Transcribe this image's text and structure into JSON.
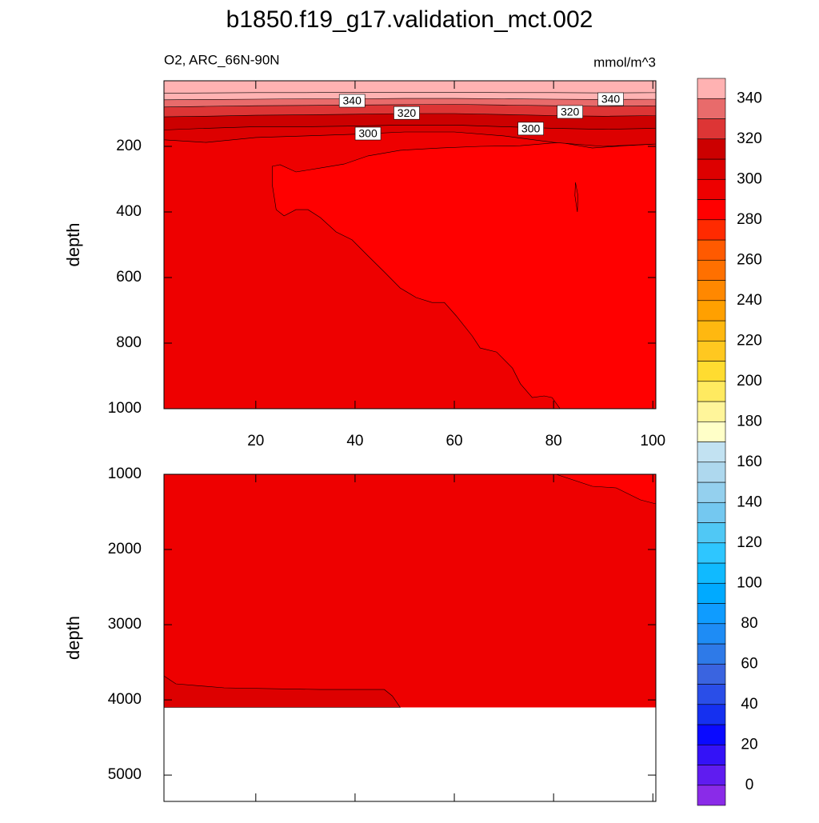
{
  "chart_data": {
    "type": "contour",
    "title": "b1850.f19_g17.validation_mct.002",
    "subtitle": "O2, ARC_66N-90N",
    "units": "mmol/m^3",
    "xlim": [
      1.5,
      100.6
    ],
    "xticks": [
      20,
      40,
      60,
      80,
      100
    ],
    "y_reversed": true,
    "panels": [
      {
        "ylabel": "depth",
        "ylim": [
          0,
          1000
        ],
        "yticks": [
          200,
          400,
          600,
          800,
          1000
        ],
        "xtick_labels": true,
        "regions": [
          {
            "level": 290,
            "x": [
              1.5,
              100.6,
              100.6,
              1.5
            ],
            "depth": [
              0,
              0,
              1000,
              1000
            ]
          },
          {
            "level": 280,
            "x": [
              23.3,
              24.9,
              28.1,
              33.0,
              37.8,
              42.6,
              49.1,
              57.1,
              65.2,
              73.3,
              81.3,
              87.8,
              94.2,
              100.6,
              100.6,
              81.3,
              79.7,
              78.1,
              75.7,
              73.3,
              71.7,
              68.5,
              65.2,
              63.6,
              60.4,
              58.0,
              55.5,
              52.3,
              49.1,
              45.9,
              42.6,
              39.4,
              36.2,
              33.0,
              30.5,
              28.1,
              25.7,
              24.1,
              23.3
            ],
            "depth": [
              261,
              256,
              278,
              266,
              254,
              229,
              212,
              205,
              200,
              198,
              188,
              205,
              198,
              193,
              1000,
              1000,
              966,
              961,
              966,
              924,
              876,
              827,
              815,
              778,
              717,
              676,
              676,
              661,
              632,
              583,
              534,
              485,
              461,
              417,
              393,
              393,
              412,
              393,
              315
            ]
          },
          {
            "level": 280,
            "x": [
              84.4,
              84.9,
              84.8,
              84.3
            ],
            "depth": [
              310,
              350,
              400,
              350
            ]
          },
          {
            "level": 300,
            "x": [
              1.5,
              10,
              20,
              30,
              40,
              50,
              60,
              70,
              80,
              90,
              100.6,
              100.6,
              1.5
            ],
            "depth": [
              180,
              188,
              173,
              168,
              163,
              156,
              156,
              168,
              188,
              200,
              193,
              0,
              0
            ]
          },
          {
            "level": 310,
            "x": [
              1.5,
              10,
              20,
              30,
              40,
              50,
              60,
              70,
              80,
              90,
              100.6,
              100.6,
              1.5
            ],
            "depth": [
              150,
              145,
              140,
              140,
              138,
              135,
              135,
              140,
              145,
              148,
              145,
              0,
              0
            ]
          },
          {
            "level": 320,
            "x": [
              1.5,
              10,
              20,
              30,
              40,
              50,
              60,
              70,
              80,
              90,
              100.6,
              100.6,
              1.5
            ],
            "depth": [
              110,
              108,
              105,
              104,
              102,
              100,
              100,
              103,
              106,
              108,
              106,
              0,
              0
            ]
          },
          {
            "level": 330,
            "x": [
              1.5,
              10,
              20,
              30,
              40,
              50,
              60,
              70,
              80,
              90,
              100.6,
              100.6,
              1.5
            ],
            "depth": [
              80,
              78,
              76,
              75,
              74,
              73,
              72,
              74,
              76,
              78,
              76,
              0,
              0
            ]
          },
          {
            "level": 340,
            "x": [
              1.5,
              10,
              20,
              30,
              40,
              50,
              60,
              70,
              80,
              90,
              100.6,
              100.6,
              1.5
            ],
            "depth": [
              58,
              57,
              56,
              55,
              55,
              54,
              54,
              55,
              56,
              57,
              56,
              0,
              0
            ]
          },
          {
            "level": 350,
            "x": [
              1.5,
              10,
              20,
              30,
              40,
              50,
              60,
              70,
              80,
              90,
              100.6,
              100.6,
              1.5
            ],
            "depth": [
              38,
              37,
              36,
              36,
              35,
              35,
              35,
              36,
              36,
              37,
              36,
              0,
              0
            ]
          }
        ],
        "contour_labels": [
          {
            "value": 340,
            "x": 39.4,
            "depth": 61
          },
          {
            "value": 340,
            "x": 91.5,
            "depth": 56
          },
          {
            "value": 320,
            "x": 50.4,
            "depth": 98
          },
          {
            "value": 320,
            "x": 83.3,
            "depth": 95
          },
          {
            "value": 300,
            "x": 42.6,
            "depth": 161
          },
          {
            "value": 300,
            "x": 75.4,
            "depth": 146
          }
        ]
      },
      {
        "ylabel": "depth",
        "ylim": [
          1000,
          5350
        ],
        "yticks": [
          1000,
          2000,
          3000,
          4000,
          5000
        ],
        "xtick_labels": false,
        "regions": [
          {
            "level": 290,
            "x": [
              1.5,
              100.6,
              100.6,
              1.5
            ],
            "depth": [
              1000,
              1000,
              4100,
              4100
            ]
          },
          {
            "level": 280,
            "x": [
              80.5,
              87.8,
              92.6,
              97.5,
              100.6,
              100.6
            ],
            "depth": [
              1000,
              1160,
              1181,
              1340,
              1394,
              1000
            ]
          },
          {
            "level": 300,
            "x": [
              1.5,
              3.9,
              13.6,
              33.0,
              45.9,
              47.5,
              49.1,
              1.5
            ],
            "depth": [
              3681,
              3787,
              3840,
              3862,
              3862,
              3947,
              4100,
              4100
            ]
          }
        ],
        "contour_labels": []
      }
    ],
    "colorbar": {
      "levels": [
        0,
        10,
        20,
        30,
        40,
        50,
        60,
        70,
        80,
        90,
        100,
        110,
        120,
        130,
        140,
        150,
        160,
        170,
        180,
        190,
        200,
        210,
        220,
        230,
        240,
        250,
        260,
        270,
        280,
        290,
        300,
        310,
        320,
        330,
        340,
        350
      ],
      "colors": [
        "#8a2be8",
        "#5f1cf0",
        "#3412f7",
        "#0a0aff",
        "#1530f0",
        "#2a4ee8",
        "#3a64e0",
        "#2e7ae8",
        "#1e8cf5",
        "#0f9cff",
        "#00aaff",
        "#10baff",
        "#2ec6ff",
        "#50c8f5",
        "#74c8f0",
        "#94d0ee",
        "#aed8ee",
        "#c2e2f2",
        "#ffffc8",
        "#fff59a",
        "#ffea60",
        "#ffdc30",
        "#ffc820",
        "#ffb810",
        "#ffa000",
        "#ff8800",
        "#ff7000",
        "#ff5a00",
        "#ff2a00",
        "#ff0000",
        "#ee0000",
        "#dd0000",
        "#cc0000",
        "#dd3535",
        "#e86b6b",
        "#ffb2b2"
      ],
      "ticks": [
        0,
        20,
        40,
        60,
        80,
        100,
        120,
        140,
        160,
        180,
        200,
        220,
        240,
        260,
        280,
        300,
        320,
        340
      ]
    }
  }
}
